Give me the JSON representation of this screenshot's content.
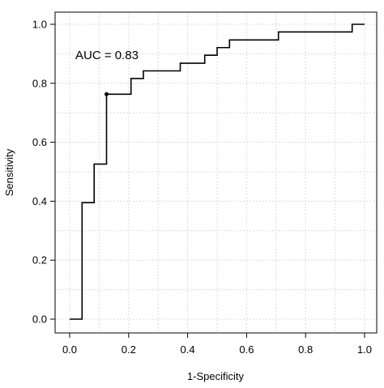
{
  "chart_data": {
    "type": "line",
    "title": "",
    "xlabel": "1-Specificity",
    "ylabel": "Sensitivity",
    "xlim": [
      0,
      1
    ],
    "ylim": [
      0,
      1
    ],
    "x_ticks": [
      0.0,
      0.2,
      0.4,
      0.6,
      0.8,
      1.0
    ],
    "y_ticks": [
      0.0,
      0.2,
      0.4,
      0.6,
      0.8,
      1.0
    ],
    "x_tick_labels": [
      "0.0",
      "0.2",
      "0.4",
      "0.6",
      "0.8",
      "1.0"
    ],
    "y_tick_labels": [
      "0.0",
      "0.2",
      "0.4",
      "0.6",
      "0.8",
      "1.0"
    ],
    "grid": true,
    "annotation": "AUC = 0.83",
    "line_color": "#000000",
    "grid_color": "#dcdcdc",
    "series": [
      {
        "step": "post",
        "points": [
          {
            "x": 0.0,
            "y": 0.0
          },
          {
            "x": 0.042,
            "y": 0.0
          },
          {
            "x": 0.042,
            "y": 0.395
          },
          {
            "x": 0.083,
            "y": 0.395
          },
          {
            "x": 0.083,
            "y": 0.526
          },
          {
            "x": 0.125,
            "y": 0.526
          },
          {
            "x": 0.125,
            "y": 0.763
          },
          {
            "x": 0.208,
            "y": 0.763
          },
          {
            "x": 0.208,
            "y": 0.816
          },
          {
            "x": 0.25,
            "y": 0.816
          },
          {
            "x": 0.25,
            "y": 0.842
          },
          {
            "x": 0.375,
            "y": 0.842
          },
          {
            "x": 0.375,
            "y": 0.868
          },
          {
            "x": 0.458,
            "y": 0.868
          },
          {
            "x": 0.458,
            "y": 0.895
          },
          {
            "x": 0.5,
            "y": 0.895
          },
          {
            "x": 0.5,
            "y": 0.921
          },
          {
            "x": 0.542,
            "y": 0.921
          },
          {
            "x": 0.542,
            "y": 0.947
          },
          {
            "x": 0.708,
            "y": 0.947
          },
          {
            "x": 0.708,
            "y": 0.974
          },
          {
            "x": 0.958,
            "y": 0.974
          },
          {
            "x": 0.958,
            "y": 1.0
          },
          {
            "x": 1.0,
            "y": 1.0
          }
        ]
      }
    ],
    "highlighted_point": {
      "x": 0.125,
      "y": 0.763
    }
  }
}
